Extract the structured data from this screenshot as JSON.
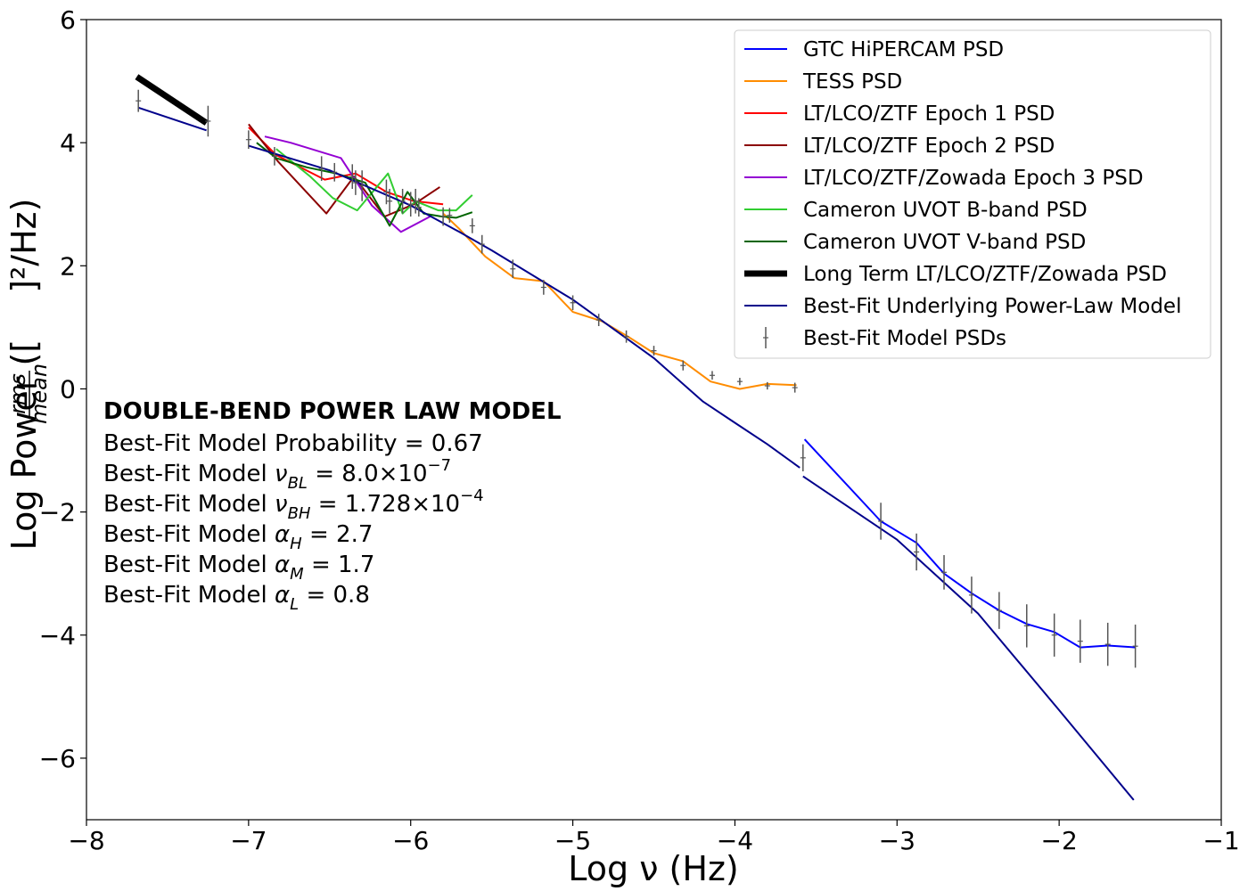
{
  "chart_data": {
    "type": "line",
    "xlabel": "Log ν (Hz)",
    "ylabel_prefix": "Log Power ([",
    "ylabel_frac_num": "rms",
    "ylabel_frac_den": "mean",
    "ylabel_suffix": "]²/Hz)",
    "xlim": [
      -8,
      -1
    ],
    "ylim": [
      -7,
      6
    ],
    "xticks": [
      -8,
      -7,
      -6,
      -5,
      -4,
      -3,
      -2,
      -1
    ],
    "yticks": [
      -6,
      -4,
      -2,
      0,
      2,
      4,
      6
    ],
    "xtick_labels": [
      "−8",
      "−7",
      "−6",
      "−5",
      "−4",
      "−3",
      "−2",
      "−1"
    ],
    "ytick_labels": [
      "−6",
      "−4",
      "−2",
      "0",
      "2",
      "4",
      "6"
    ],
    "legend_position": "top-right",
    "series": [
      {
        "name": "GTC HiPERCAM PSD",
        "color": "#0000ff",
        "width": 2,
        "x": [
          -3.57,
          -3.1,
          -2.88,
          -2.71,
          -2.54,
          -2.37,
          -2.2,
          -2.03,
          -1.87,
          -1.7,
          -1.53
        ],
        "y": [
          -0.82,
          -2.15,
          -2.5,
          -3.0,
          -3.32,
          -3.6,
          -3.82,
          -3.95,
          -4.2,
          -4.17,
          -4.2
        ]
      },
      {
        "name": "TESS PSD",
        "color": "#ff8c00",
        "width": 2,
        "x": [
          -5.8,
          -5.7,
          -5.54,
          -5.36,
          -5.18,
          -5.0,
          -4.82,
          -4.66,
          -4.5,
          -4.32,
          -4.15,
          -3.97,
          -3.8,
          -3.62
        ],
        "y": [
          2.85,
          2.6,
          2.15,
          1.8,
          1.75,
          1.25,
          1.1,
          0.85,
          0.58,
          0.45,
          0.12,
          0.0,
          0.08,
          0.06
        ]
      },
      {
        "name": "LT/LCO/ZTF Epoch 1 PSD",
        "color": "#ff0000",
        "width": 2,
        "x": [
          -7.0,
          -6.83,
          -6.53,
          -6.34,
          -6.15,
          -5.98,
          -5.8
        ],
        "y": [
          4.25,
          3.8,
          3.4,
          3.5,
          3.2,
          3.05,
          3.0
        ]
      },
      {
        "name": "LT/LCO/ZTF Epoch 2 PSD",
        "color": "#8b0000",
        "width": 2,
        "x": [
          -7.0,
          -6.82,
          -6.52,
          -6.35,
          -6.16,
          -5.98,
          -5.82
        ],
        "y": [
          4.3,
          3.7,
          2.85,
          3.45,
          2.8,
          3.0,
          3.28
        ]
      },
      {
        "name": "LT/LCO/ZTF/Zowada Epoch 3 PSD",
        "color": "#9400d3",
        "width": 2,
        "x": [
          -6.9,
          -6.74,
          -6.43,
          -6.24,
          -6.06,
          -5.88
        ],
        "y": [
          4.1,
          4.0,
          3.75,
          2.98,
          2.55,
          2.8
        ]
      },
      {
        "name": "Cameron UVOT B-band PSD",
        "color": "#32cd32",
        "width": 2,
        "x": [
          -6.83,
          -6.62,
          -6.48,
          -6.33,
          -6.14,
          -6.05,
          -5.97,
          -5.83,
          -5.72,
          -5.62
        ],
        "y": [
          3.9,
          3.45,
          3.1,
          2.9,
          3.5,
          2.85,
          3.05,
          2.9,
          2.9,
          3.15
        ]
      },
      {
        "name": "Cameron UVOT V-band PSD",
        "color": "#006400",
        "width": 2,
        "x": [
          -6.95,
          -6.83,
          -6.64,
          -6.46,
          -6.28,
          -6.13,
          -6.02,
          -5.92,
          -5.81,
          -5.72,
          -5.62
        ],
        "y": [
          4.0,
          3.75,
          3.6,
          3.5,
          3.35,
          2.65,
          3.2,
          2.85,
          2.8,
          2.78,
          2.87
        ]
      },
      {
        "name": "Long Term LT/LCO/ZTF/Zowada PSD",
        "color": "#000000",
        "width": 7,
        "x": [
          -7.69,
          -7.26
        ],
        "y": [
          5.07,
          4.32
        ]
      },
      {
        "name": "Best-Fit Underlying Power-Law Model",
        "color": "#00008b",
        "width": 2,
        "segments": [
          {
            "x": [
              -7.68,
              -7.26
            ],
            "y": [
              4.57,
              4.2
            ]
          },
          {
            "x": [
              -7.0,
              -6.5,
              -6.0,
              -5.7,
              -5.5,
              -5.0,
              -4.5,
              -4.2,
              -4.0,
              -3.8,
              -3.6
            ],
            "y": [
              3.95,
              3.55,
              2.98,
              2.55,
              2.25,
              1.45,
              0.5,
              -0.2,
              -0.55,
              -0.9,
              -1.28
            ]
          },
          {
            "x": [
              -3.58,
              -3.0,
              -2.5,
              -2.0,
              -1.54
            ],
            "y": [
              -1.42,
              -2.45,
              -3.65,
              -5.22,
              -6.68
            ]
          }
        ]
      },
      {
        "name": "Best-Fit Model PSDs",
        "color": "#555555",
        "marker": "errorbar",
        "points": [
          {
            "x": -7.68,
            "y": 4.68,
            "e": 0.18
          },
          {
            "x": -7.25,
            "y": 4.35,
            "e": 0.25
          },
          {
            "x": -7.0,
            "y": 4.05,
            "e": 0.15
          },
          {
            "x": -6.84,
            "y": 3.78,
            "e": 0.15
          },
          {
            "x": -6.55,
            "y": 3.58,
            "e": 0.2
          },
          {
            "x": -6.47,
            "y": 3.52,
            "e": 0.15
          },
          {
            "x": -6.36,
            "y": 3.45,
            "e": 0.2
          },
          {
            "x": -6.34,
            "y": 3.35,
            "e": 0.2
          },
          {
            "x": -6.3,
            "y": 3.3,
            "e": 0.25
          },
          {
            "x": -6.15,
            "y": 3.2,
            "e": 0.2
          },
          {
            "x": -6.13,
            "y": 3.05,
            "e": 0.2
          },
          {
            "x": -6.05,
            "y": 3.05,
            "e": 0.2
          },
          {
            "x": -6.0,
            "y": 3.0,
            "e": 0.2
          },
          {
            "x": -5.97,
            "y": 3.05,
            "e": 0.2
          },
          {
            "x": -5.95,
            "y": 2.95,
            "e": 0.15
          },
          {
            "x": -5.8,
            "y": 2.8,
            "e": 0.15
          },
          {
            "x": -5.76,
            "y": 2.82,
            "e": 0.12
          },
          {
            "x": -5.62,
            "y": 2.65,
            "e": 0.12
          },
          {
            "x": -5.56,
            "y": 2.35,
            "e": 0.15
          },
          {
            "x": -5.37,
            "y": 1.95,
            "e": 0.15
          },
          {
            "x": -5.18,
            "y": 1.65,
            "e": 0.12
          },
          {
            "x": -5.0,
            "y": 1.4,
            "e": 0.12
          },
          {
            "x": -4.84,
            "y": 1.12,
            "e": 0.1
          },
          {
            "x": -4.67,
            "y": 0.85,
            "e": 0.1
          },
          {
            "x": -4.5,
            "y": 0.62,
            "e": 0.08
          },
          {
            "x": -4.32,
            "y": 0.38,
            "e": 0.08
          },
          {
            "x": -4.14,
            "y": 0.22,
            "e": 0.07
          },
          {
            "x": -3.97,
            "y": 0.12,
            "e": 0.06
          },
          {
            "x": -3.8,
            "y": 0.05,
            "e": 0.06
          },
          {
            "x": -3.63,
            "y": 0.02,
            "e": 0.08
          },
          {
            "x": -3.58,
            "y": -1.12,
            "e": 0.22
          },
          {
            "x": -3.1,
            "y": -2.15,
            "e": 0.3
          },
          {
            "x": -2.88,
            "y": -2.65,
            "e": 0.3
          },
          {
            "x": -2.71,
            "y": -2.98,
            "e": 0.28
          },
          {
            "x": -2.54,
            "y": -3.35,
            "e": 0.3
          },
          {
            "x": -2.37,
            "y": -3.6,
            "e": 0.3
          },
          {
            "x": -2.2,
            "y": -3.85,
            "e": 0.35
          },
          {
            "x": -2.03,
            "y": -4.0,
            "e": 0.35
          },
          {
            "x": -1.87,
            "y": -4.1,
            "e": 0.35
          },
          {
            "x": -1.7,
            "y": -4.15,
            "e": 0.35
          },
          {
            "x": -1.53,
            "y": -4.18,
            "e": 0.35
          }
        ]
      }
    ],
    "annotation": {
      "title": "DOUBLE-BEND POWER LAW MODEL",
      "probability_label": "Best-Fit Model Probability = 0.67",
      "nu_bl_prefix": "Best-Fit Model ",
      "nu_bl_symbol": "ν",
      "nu_bl_sub": "BL",
      "nu_bl_value": " = 8.0×10",
      "nu_bl_exp": "−7",
      "nu_bh_prefix": "Best-Fit Model ",
      "nu_bh_symbol": "ν",
      "nu_bh_sub": "BH",
      "nu_bh_value": " = 1.728×10",
      "nu_bh_exp": "−4",
      "alpha_h_prefix": "Best-Fit Model ",
      "alpha_h_symbol": "α",
      "alpha_h_sub": "H",
      "alpha_h_value": " = 2.7",
      "alpha_m_prefix": "Best-Fit Model ",
      "alpha_m_symbol": "α",
      "alpha_m_sub": "M",
      "alpha_m_value": " = 1.7",
      "alpha_l_prefix": "Best-Fit Model ",
      "alpha_l_symbol": "α",
      "alpha_l_sub": "L",
      "alpha_l_value": " = 0.8"
    }
  }
}
